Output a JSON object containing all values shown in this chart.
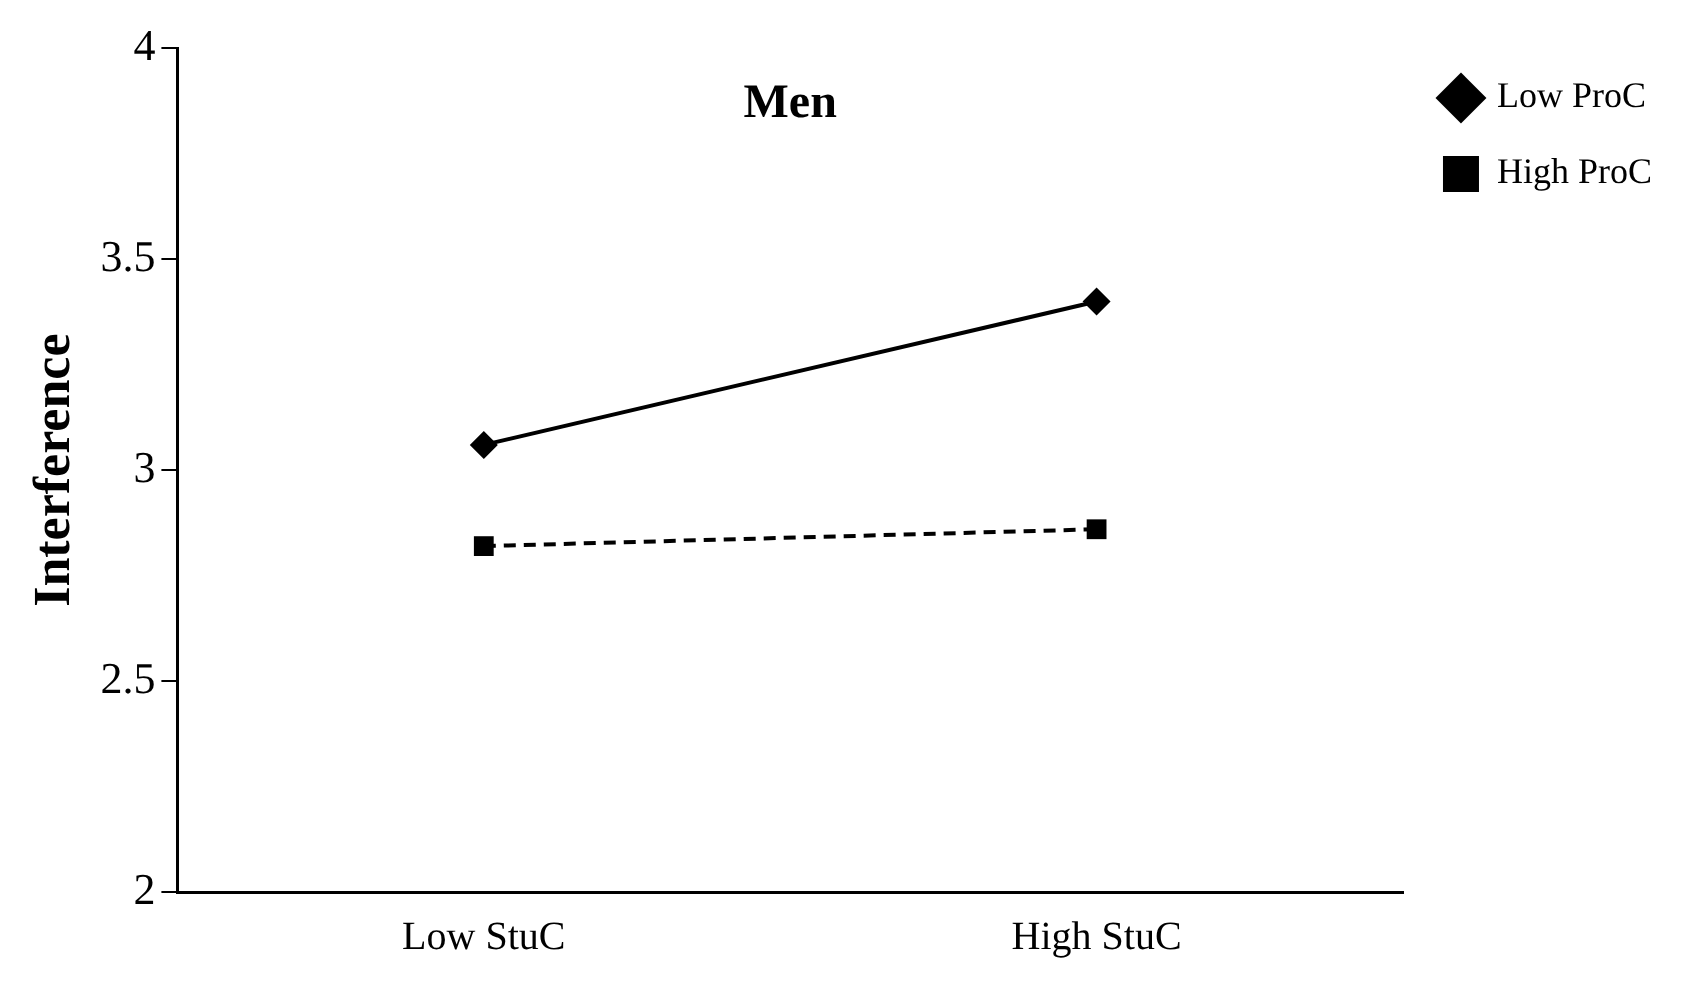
{
  "chart_data": {
    "type": "line",
    "title": "Men",
    "ylabel": "Interference",
    "categories": [
      "Low StuC",
      "High StuC"
    ],
    "series": [
      {
        "name": "Low ProC",
        "color": "#000000",
        "values": [
          3.06,
          3.4
        ],
        "marker": "diamond",
        "line_style": "solid"
      },
      {
        "name": "High ProC",
        "color": "#000000",
        "values": [
          2.82,
          2.86
        ],
        "marker": "square",
        "line_style": "dashed"
      }
    ],
    "ylim": [
      2,
      4
    ],
    "yticks": [
      2,
      2.5,
      3,
      3.5,
      4
    ],
    "grid": false,
    "legend": "top right"
  }
}
